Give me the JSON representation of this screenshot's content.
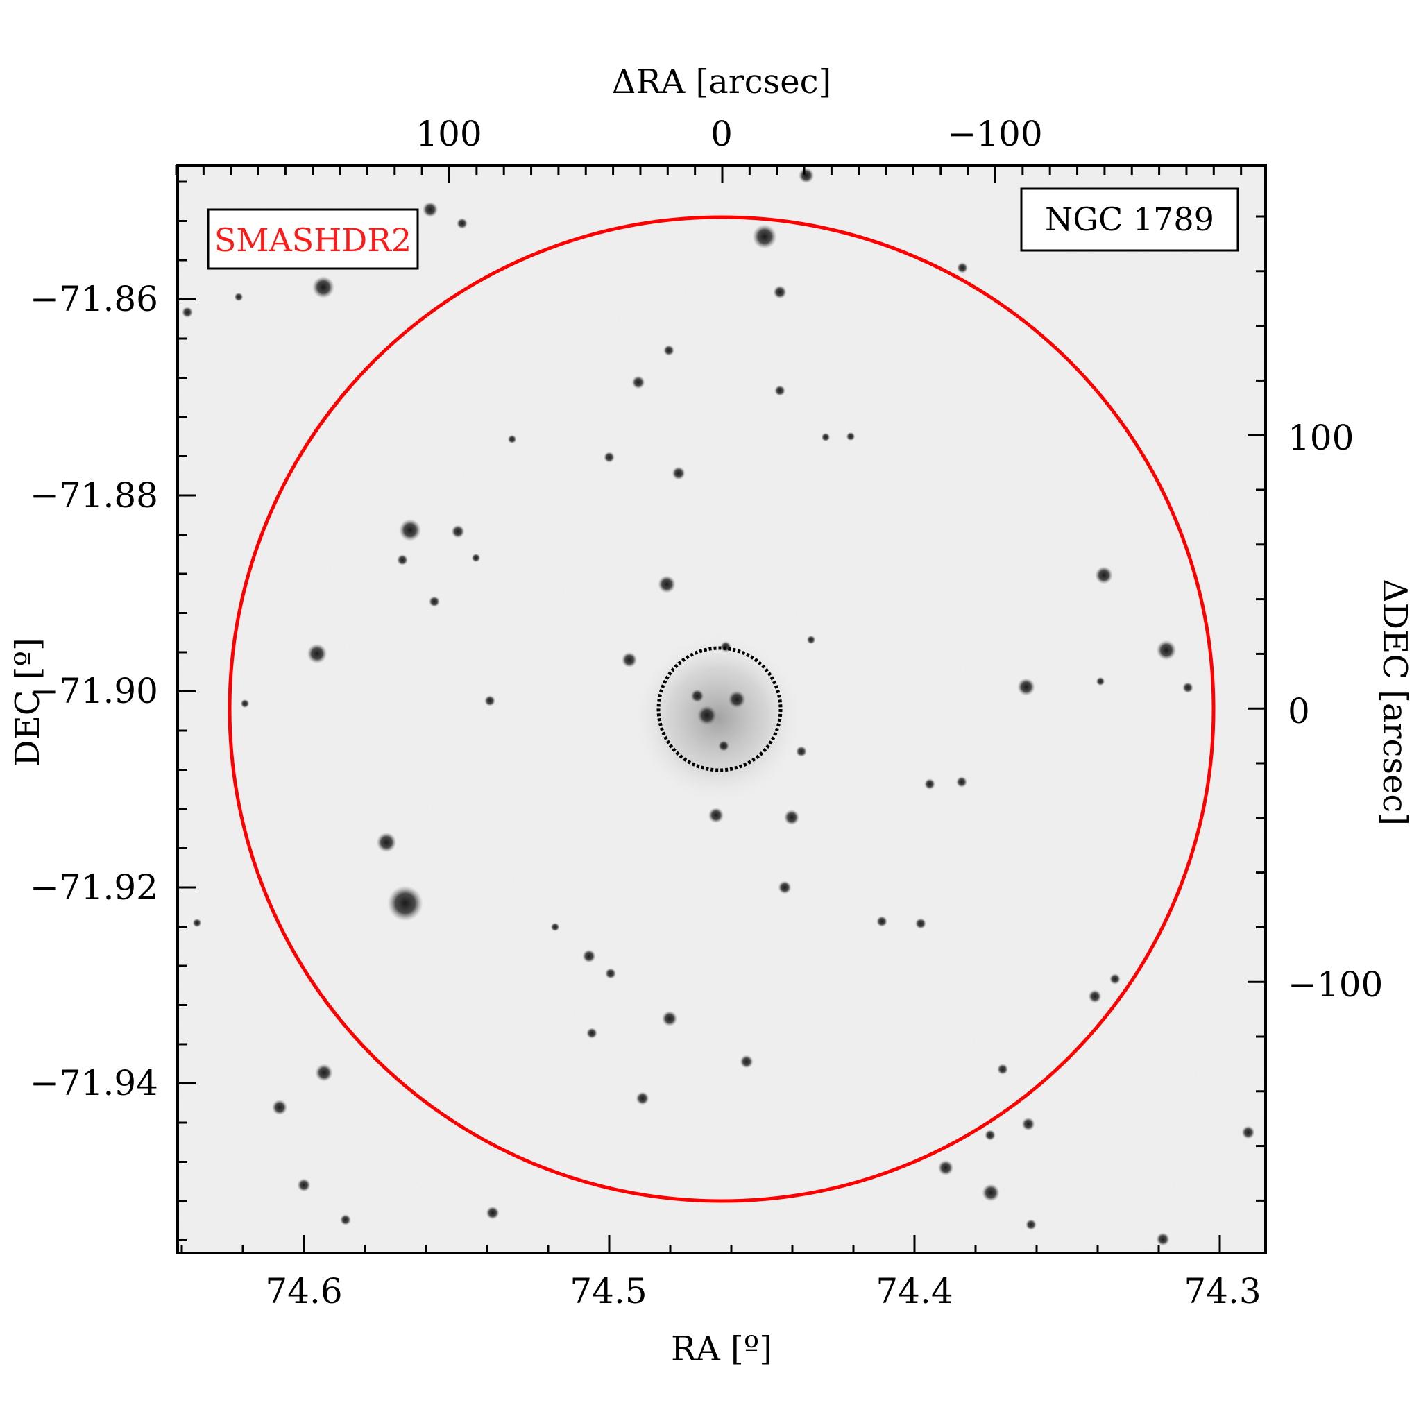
{
  "figure": {
    "top_axis_title": "ΔRA [arcsec]",
    "bottom_axis_title": "RA [º]",
    "left_axis_title": "DEC [º]",
    "right_axis_title": "ΔDEC [arcsec]",
    "survey_label": "SMASHDR2",
    "object_label": "NGC 1789",
    "colors": {
      "survey_label": "#ff1a1a",
      "outer_circle": "#ff0000",
      "inner_circle": "#000000",
      "background_sky": "#f2f2f2"
    }
  },
  "axes": {
    "ra_ticks": [
      "74.6",
      "74.5",
      "74.4",
      "74.3"
    ],
    "dec_ticks": [
      "−71.86",
      "−71.88",
      "−71.90",
      "−71.92",
      "−71.94"
    ],
    "dra_ticks": [
      "100",
      "0",
      "−100"
    ],
    "ddec_ticks": [
      "100",
      "0",
      "−100"
    ]
  }
}
